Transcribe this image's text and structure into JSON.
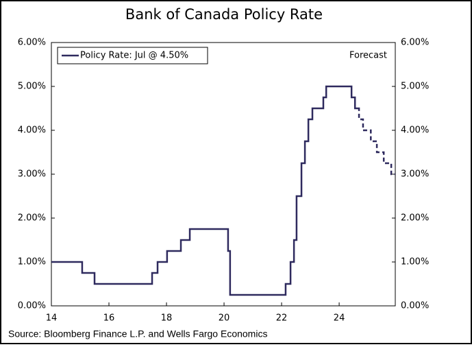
{
  "chart_data": {
    "type": "line",
    "title": "Bank of Canada Policy Rate",
    "source": "Source: Bloomberg Finance L.P. and Wells Fargo Economics",
    "xlim": [
      14,
      25.95
    ],
    "xticks": [
      14,
      16,
      18,
      20,
      22,
      24
    ],
    "ylim": [
      0,
      6
    ],
    "yticks": [
      {
        "value": 0,
        "label": "0.00%"
      },
      {
        "value": 1,
        "label": "1.00%"
      },
      {
        "value": 2,
        "label": "2.00%"
      },
      {
        "value": 3,
        "label": "3.00%"
      },
      {
        "value": 4,
        "label": "4.00%"
      },
      {
        "value": 5,
        "label": "5.00%"
      },
      {
        "value": 6,
        "label": "6.00%"
      }
    ],
    "y2lim": [
      0,
      6
    ],
    "y2ticks": [
      {
        "value": 0,
        "label": "0.00%"
      },
      {
        "value": 1,
        "label": "1.00%"
      },
      {
        "value": 2,
        "label": "2.00%"
      },
      {
        "value": 3,
        "label": "3.00%"
      },
      {
        "value": 4,
        "label": "4.00%"
      },
      {
        "value": 5,
        "label": "5.00%"
      },
      {
        "value": 6,
        "label": "6.00%"
      }
    ],
    "grid": false,
    "legend": "top-left",
    "series": [
      {
        "name": "Policy Rate: Jul @ 4.50%",
        "color": "#2e2a5e",
        "dashed": false,
        "x": [
          14.0,
          15.07,
          15.07,
          15.5,
          15.5,
          17.5,
          17.5,
          17.69,
          17.69,
          18.02,
          18.02,
          18.5,
          18.5,
          18.81,
          18.81,
          20.14,
          20.14,
          20.21,
          20.21,
          22.14,
          22.14,
          22.31,
          22.31,
          22.43,
          22.43,
          22.52,
          22.52,
          22.69,
          22.69,
          22.81,
          22.81,
          22.93,
          22.93,
          23.07,
          23.07,
          23.45,
          23.45,
          23.55,
          23.55,
          24.43,
          24.43,
          24.55,
          24.55,
          24.64
        ],
        "values": [
          1.0,
          1.0,
          0.75,
          0.75,
          0.5,
          0.5,
          0.75,
          0.75,
          1.0,
          1.0,
          1.25,
          1.25,
          1.5,
          1.5,
          1.75,
          1.75,
          1.25,
          1.25,
          0.25,
          0.25,
          0.5,
          0.5,
          1.0,
          1.0,
          1.5,
          1.5,
          2.5,
          2.5,
          3.25,
          3.25,
          3.75,
          3.75,
          4.25,
          4.25,
          4.5,
          4.5,
          4.75,
          4.75,
          5.0,
          5.0,
          4.75,
          4.75,
          4.5,
          4.5
        ]
      },
      {
        "name": "Forecast",
        "color": "#2e2a5e",
        "dashed": true,
        "x": [
          24.64,
          24.69,
          24.69,
          24.83,
          24.83,
          25.1,
          25.1,
          25.31,
          25.31,
          25.55,
          25.55,
          25.81,
          25.81,
          25.95
        ],
        "values": [
          4.5,
          4.5,
          4.25,
          4.25,
          4.0,
          4.0,
          3.75,
          3.75,
          3.5,
          3.5,
          3.25,
          3.25,
          3.0,
          3.0
        ]
      }
    ]
  }
}
